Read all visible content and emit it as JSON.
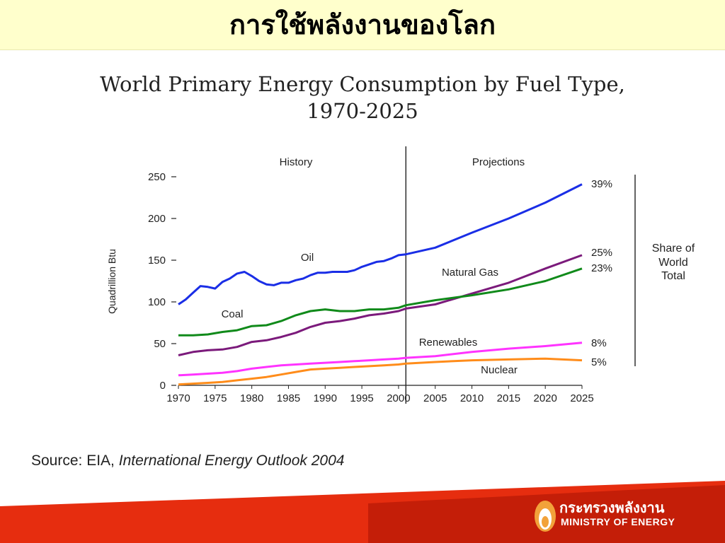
{
  "slide": {
    "title": "การใช้พลังงานของโลก"
  },
  "chart_data": {
    "type": "line",
    "title": "World Primary Energy Consumption by Fuel Type,",
    "subtitle": "1970-2025",
    "xlabel": "",
    "ylabel": "Quadrillion Btu",
    "xlim": [
      1970,
      2025
    ],
    "ylim": [
      0,
      250
    ],
    "x_ticks": [
      1970,
      1975,
      1980,
      1985,
      1990,
      1995,
      2000,
      2005,
      2010,
      2015,
      2020,
      2025
    ],
    "y_ticks": [
      0,
      50,
      100,
      150,
      200,
      250
    ],
    "grid": false,
    "divider_year": 2001,
    "region_labels": {
      "history": "History",
      "projections": "Projections"
    },
    "share_label": {
      "line1": "Share of",
      "line2": "World",
      "line3": "Total"
    },
    "series": [
      {
        "name": "Oil",
        "color": "#1a2ee6",
        "share": "39%",
        "points": [
          [
            1970,
            97
          ],
          [
            1971,
            103
          ],
          [
            1972,
            111
          ],
          [
            1973,
            119
          ],
          [
            1974,
            118
          ],
          [
            1975,
            116
          ],
          [
            1976,
            124
          ],
          [
            1977,
            128
          ],
          [
            1978,
            134
          ],
          [
            1979,
            136
          ],
          [
            1980,
            131
          ],
          [
            1981,
            125
          ],
          [
            1982,
            121
          ],
          [
            1983,
            120
          ],
          [
            1984,
            123
          ],
          [
            1985,
            123
          ],
          [
            1986,
            126
          ],
          [
            1987,
            128
          ],
          [
            1988,
            132
          ],
          [
            1989,
            135
          ],
          [
            1990,
            135
          ],
          [
            1991,
            136
          ],
          [
            1992,
            136
          ],
          [
            1993,
            136
          ],
          [
            1994,
            138
          ],
          [
            1995,
            142
          ],
          [
            1996,
            145
          ],
          [
            1997,
            148
          ],
          [
            1998,
            149
          ],
          [
            1999,
            152
          ],
          [
            2000,
            156
          ],
          [
            2001,
            157
          ],
          [
            2005,
            165
          ],
          [
            2010,
            183
          ],
          [
            2015,
            200
          ],
          [
            2020,
            219
          ],
          [
            2025,
            241
          ]
        ]
      },
      {
        "name": "Natural Gas",
        "color": "#7b1a7b",
        "share": "25%",
        "points": [
          [
            1970,
            36
          ],
          [
            1972,
            40
          ],
          [
            1974,
            42
          ],
          [
            1976,
            43
          ],
          [
            1978,
            46
          ],
          [
            1980,
            52
          ],
          [
            1982,
            54
          ],
          [
            1984,
            58
          ],
          [
            1986,
            63
          ],
          [
            1988,
            70
          ],
          [
            1990,
            75
          ],
          [
            1992,
            77
          ],
          [
            1994,
            80
          ],
          [
            1996,
            84
          ],
          [
            1998,
            86
          ],
          [
            2000,
            89
          ],
          [
            2001,
            92
          ],
          [
            2005,
            97
          ],
          [
            2010,
            110
          ],
          [
            2015,
            123
          ],
          [
            2020,
            140
          ],
          [
            2025,
            156
          ]
        ]
      },
      {
        "name": "Coal",
        "color": "#108a1a",
        "share": "23%",
        "points": [
          [
            1970,
            60
          ],
          [
            1972,
            60
          ],
          [
            1974,
            61
          ],
          [
            1976,
            64
          ],
          [
            1978,
            66
          ],
          [
            1980,
            71
          ],
          [
            1982,
            72
          ],
          [
            1984,
            77
          ],
          [
            1986,
            84
          ],
          [
            1988,
            89
          ],
          [
            1990,
            91
          ],
          [
            1992,
            89
          ],
          [
            1994,
            89
          ],
          [
            1996,
            91
          ],
          [
            1998,
            91
          ],
          [
            2000,
            93
          ],
          [
            2001,
            96
          ],
          [
            2005,
            102
          ],
          [
            2010,
            108
          ],
          [
            2015,
            115
          ],
          [
            2020,
            125
          ],
          [
            2025,
            140
          ]
        ]
      },
      {
        "name": "Renewables",
        "color": "#ff33ff",
        "share": "8%",
        "points": [
          [
            1970,
            12
          ],
          [
            1972,
            13
          ],
          [
            1974,
            14
          ],
          [
            1976,
            15
          ],
          [
            1978,
            17
          ],
          [
            1980,
            20
          ],
          [
            1982,
            22
          ],
          [
            1984,
            24
          ],
          [
            1986,
            25
          ],
          [
            1988,
            26
          ],
          [
            1990,
            27
          ],
          [
            1992,
            28
          ],
          [
            1994,
            29
          ],
          [
            1996,
            30
          ],
          [
            1998,
            31
          ],
          [
            2000,
            32
          ],
          [
            2001,
            33
          ],
          [
            2005,
            35
          ],
          [
            2010,
            40
          ],
          [
            2015,
            44
          ],
          [
            2020,
            47
          ],
          [
            2025,
            51
          ]
        ]
      },
      {
        "name": "Nuclear",
        "color": "#ff8c1a",
        "share": "5%",
        "points": [
          [
            1970,
            1
          ],
          [
            1972,
            2
          ],
          [
            1974,
            3
          ],
          [
            1976,
            4
          ],
          [
            1978,
            6
          ],
          [
            1980,
            8
          ],
          [
            1982,
            10
          ],
          [
            1984,
            13
          ],
          [
            1986,
            16
          ],
          [
            1988,
            19
          ],
          [
            1990,
            20
          ],
          [
            1992,
            21
          ],
          [
            1994,
            22
          ],
          [
            1996,
            23
          ],
          [
            1998,
            24
          ],
          [
            2000,
            25
          ],
          [
            2001,
            26
          ],
          [
            2005,
            28
          ],
          [
            2010,
            30
          ],
          [
            2015,
            31
          ],
          [
            2020,
            32
          ],
          [
            2025,
            30
          ]
        ]
      }
    ]
  },
  "source": {
    "prefix": "Source:   EIA, ",
    "publication": "International Energy Outlook 2004"
  },
  "footer": {
    "logo_th": "กระทรวงพลังงาน",
    "logo_en": "MINISTRY OF ENERGY"
  }
}
